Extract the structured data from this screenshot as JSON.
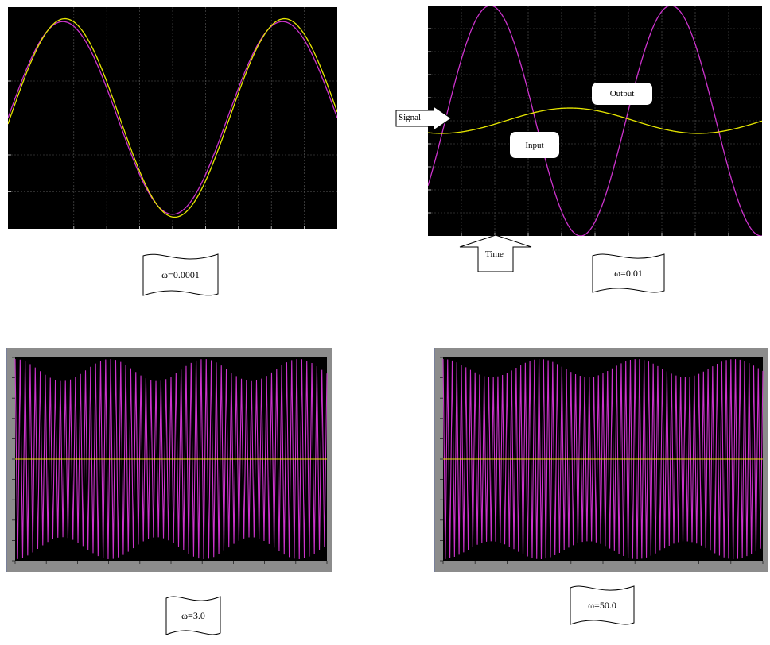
{
  "annotations": {
    "signal_label": "Signal",
    "time_label": "Time",
    "input_label": "Input",
    "output_label": "Output"
  },
  "colors": {
    "plot_bg": "#000000",
    "grid": "#5a5a5a",
    "input": "#cc33cc",
    "output": "#e6e600",
    "frame": "#8c8c8c",
    "frame_edge": "#3d5fc4"
  },
  "chart_data": [
    {
      "type": "line",
      "omega_label": "ω=0.0001",
      "x_range": [
        0,
        2
      ],
      "ylim": [
        -1.15,
        1.15
      ],
      "grid": true,
      "series": [
        {
          "name": "Input",
          "amplitude": 1.0,
          "cycles_shown": 1.5,
          "phase_shift": 0.0
        },
        {
          "name": "Output",
          "amplitude": 1.03,
          "cycles_shown": 1.5,
          "phase_shift": -0.06
        }
      ]
    },
    {
      "type": "line",
      "omega_label": "ω=0.01",
      "x_range": [
        0,
        2
      ],
      "ylim": [
        -1.0,
        1.0
      ],
      "grid": true,
      "series": [
        {
          "name": "Input",
          "amplitude": 1.0,
          "cycles_shown": 1.85,
          "phase_shift": -0.6
        },
        {
          "name": "Output",
          "amplitude": 0.11,
          "cycles_shown": 1.3,
          "phase_shift": -1.9
        }
      ]
    },
    {
      "type": "line",
      "omega_label": "ω=3.0",
      "ylim": [
        -1,
        1
      ],
      "grid": false,
      "series": [
        {
          "name": "Input",
          "amplitude": 1.0,
          "oscillation": "dense",
          "beat_envelope": [
            0.78,
            1.0
          ]
        },
        {
          "name": "Output",
          "amplitude": 0.0
        }
      ]
    },
    {
      "type": "line",
      "omega_label": "ω=50.0",
      "ylim": [
        -1,
        1
      ],
      "grid": false,
      "series": [
        {
          "name": "Input",
          "amplitude": 1.0,
          "oscillation": "dense",
          "beat_envelope": [
            0.82,
            1.0
          ]
        },
        {
          "name": "Output",
          "amplitude": 0.0
        }
      ]
    }
  ]
}
